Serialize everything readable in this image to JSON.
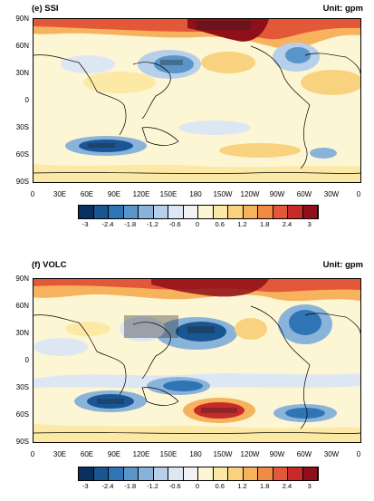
{
  "panels": [
    {
      "title": "(e) SSI",
      "unit": "Unit: gpm"
    },
    {
      "title": "(f) VOLC",
      "unit": "Unit: gpm"
    }
  ],
  "lat_ticks": [
    "90N",
    "60N",
    "30N",
    "0",
    "30S",
    "60S",
    "90S"
  ],
  "lon_ticks": [
    "0",
    "30E",
    "60E",
    "90E",
    "120E",
    "150E",
    "180",
    "150W",
    "120W",
    "90W",
    "60W",
    "30W",
    "0"
  ],
  "colorbar": {
    "labels": [
      "-3",
      "-2.4",
      "-1.8",
      "-1.2",
      "-0.6",
      "0",
      "0.6",
      "1.2",
      "1.8",
      "2.4",
      "3"
    ],
    "colors": [
      "#0b2f5e",
      "#1a5694",
      "#2f74b5",
      "#5a95c9",
      "#8ab3da",
      "#b7cfe8",
      "#dde7f3",
      "#f2f2f4",
      "#fdf6d4",
      "#fce9a6",
      "#f9d27f",
      "#f6b25c",
      "#f08a45",
      "#e4583a",
      "#c82a2a",
      "#8f0f1a"
    ]
  }
}
